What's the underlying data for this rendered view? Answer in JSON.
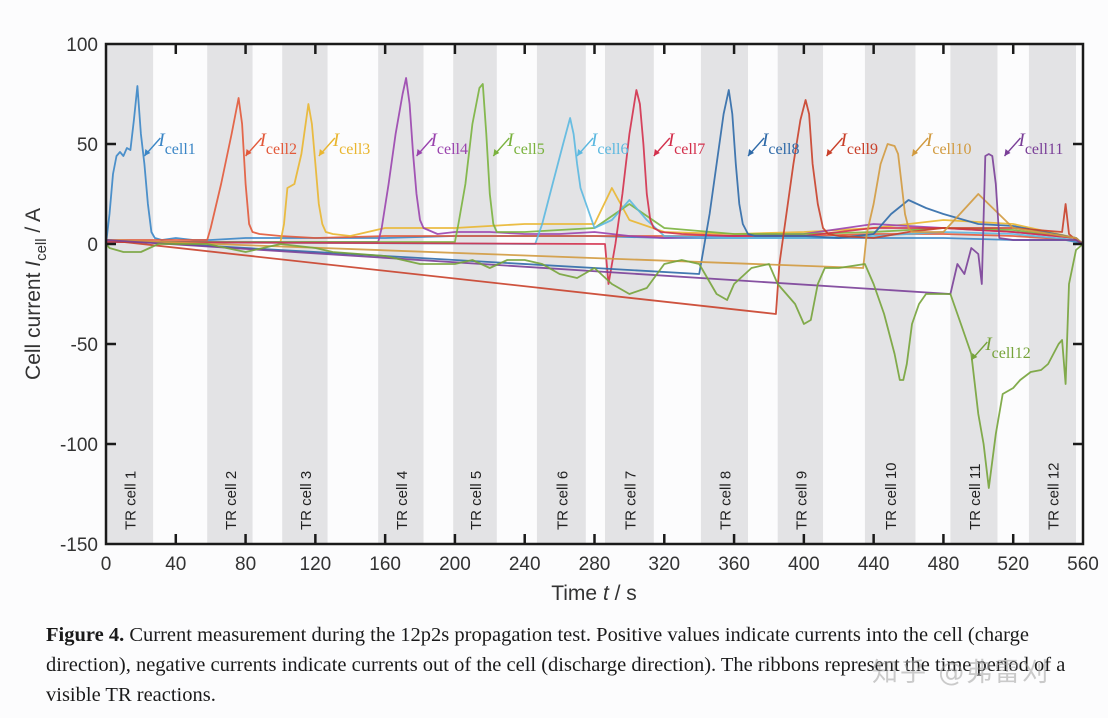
{
  "chart_data": {
    "type": "line",
    "title": "",
    "xlabel": "Time  t / s",
    "ylabel": "Cell current  I_cell / A",
    "xlim": [
      0,
      560
    ],
    "ylim": [
      -150,
      100
    ],
    "xticks": [
      0,
      40,
      80,
      120,
      160,
      200,
      240,
      280,
      320,
      360,
      400,
      440,
      480,
      520,
      560
    ],
    "yticks": [
      100,
      50,
      0,
      -50,
      -100,
      -150
    ],
    "grid": false,
    "ribbons": [
      {
        "label": "TR cell 1",
        "start": 0,
        "end": 27
      },
      {
        "label": "TR cell 2",
        "start": 58,
        "end": 84
      },
      {
        "label": "TR cell 3",
        "start": 101,
        "end": 127
      },
      {
        "label": "TR cell 4",
        "start": 156,
        "end": 182
      },
      {
        "label": "TR cell 5",
        "start": 199,
        "end": 224
      },
      {
        "label": "TR cell 6",
        "start": 247,
        "end": 275
      },
      {
        "label": "TR cell 7",
        "start": 286,
        "end": 314
      },
      {
        "label": "TR cell 8",
        "start": 341,
        "end": 368
      },
      {
        "label": "TR cell 9",
        "start": 385,
        "end": 411
      },
      {
        "label": "TR cell 10",
        "start": 435,
        "end": 464
      },
      {
        "label": "TR cell 11",
        "start": 484,
        "end": 511
      },
      {
        "label": "TR cell 12",
        "start": 529,
        "end": 556
      }
    ],
    "series": [
      {
        "name": "I cell1",
        "color": "#3b86c6",
        "label_at": [
          22,
          47
        ],
        "x": [
          0,
          2,
          4,
          6,
          8,
          10,
          12,
          14,
          16,
          18,
          20,
          22,
          24,
          26,
          28,
          32,
          40,
          50,
          60,
          80,
          120,
          160,
          200,
          240,
          280,
          320,
          360,
          400,
          440,
          480,
          520,
          550,
          556,
          560
        ],
        "y": [
          0,
          15,
          35,
          44,
          46,
          44,
          48,
          47,
          62,
          79,
          55,
          40,
          20,
          6,
          3,
          2,
          3,
          2,
          2,
          3,
          3,
          3,
          4,
          4,
          4,
          3,
          3,
          3,
          3,
          3,
          2,
          2,
          1,
          0
        ]
      },
      {
        "name": "I cell2",
        "color": "#e2593a",
        "label_at": [
          80,
          47
        ],
        "x": [
          0,
          58,
          60,
          66,
          72,
          76,
          78,
          80,
          82,
          84,
          88,
          100,
          120,
          160,
          200,
          240,
          280,
          320,
          360,
          400,
          440,
          480,
          520,
          556,
          560
        ],
        "y": [
          2,
          2,
          8,
          30,
          55,
          73,
          60,
          30,
          10,
          6,
          5,
          4,
          3,
          4,
          4,
          4,
          4,
          4,
          4,
          4,
          5,
          5,
          4,
          2,
          0
        ]
      },
      {
        "name": "I cell3",
        "color": "#e9b630",
        "label_at": [
          122,
          47
        ],
        "x": [
          0,
          100,
          102,
          104,
          108,
          112,
          116,
          118,
          120,
          122,
          124,
          126,
          130,
          140,
          160,
          200,
          240,
          280,
          290,
          300,
          320,
          360,
          400,
          440,
          480,
          520,
          556,
          560
        ],
        "y": [
          1,
          1,
          10,
          28,
          30,
          45,
          70,
          60,
          40,
          20,
          10,
          6,
          5,
          4,
          8,
          8,
          10,
          10,
          28,
          12,
          6,
          5,
          6,
          8,
          12,
          10,
          3,
          0
        ]
      },
      {
        "name": "I cell4",
        "color": "#9a44ae",
        "label_at": [
          178,
          47
        ],
        "x": [
          0,
          156,
          158,
          162,
          166,
          170,
          172,
          174,
          176,
          178,
          180,
          182,
          190,
          200,
          220,
          240,
          260,
          280,
          300,
          320,
          360,
          400,
          440,
          480,
          520,
          556,
          560
        ],
        "y": [
          1,
          1,
          8,
          30,
          55,
          75,
          83,
          70,
          45,
          25,
          12,
          8,
          5,
          6,
          6,
          5,
          5,
          6,
          4,
          3,
          4,
          5,
          10,
          8,
          6,
          3,
          0
        ]
      },
      {
        "name": "I cell5",
        "color": "#7ab23e",
        "label_at": [
          222,
          47
        ],
        "x": [
          0,
          200,
          202,
          206,
          210,
          214,
          216,
          218,
          220,
          222,
          224,
          228,
          240,
          260,
          280,
          300,
          320,
          360,
          400,
          440,
          480,
          520,
          556,
          560
        ],
        "y": [
          1,
          1,
          10,
          30,
          60,
          78,
          80,
          55,
          25,
          10,
          6,
          6,
          6,
          7,
          8,
          20,
          8,
          5,
          5,
          6,
          8,
          7,
          3,
          0
        ]
      },
      {
        "name": "I cell6",
        "color": "#5bb8e0",
        "label_at": [
          270,
          47
        ],
        "x": [
          0,
          246,
          250,
          256,
          262,
          266,
          268,
          270,
          272,
          276,
          280,
          290,
          300,
          310,
          320,
          360,
          400,
          440,
          480,
          520,
          556,
          560
        ],
        "y": [
          1,
          0,
          10,
          30,
          50,
          63,
          55,
          40,
          28,
          18,
          8,
          12,
          22,
          12,
          4,
          3,
          3,
          4,
          6,
          5,
          2,
          0
        ]
      },
      {
        "name": "I cell7",
        "color": "#d3304c",
        "label_at": [
          314,
          47
        ],
        "x": [
          0,
          286,
          288,
          292,
          296,
          300,
          304,
          306,
          308,
          310,
          312,
          314,
          318,
          330,
          360,
          400,
          440,
          480,
          520,
          556,
          560
        ],
        "y": [
          1,
          0,
          -20,
          0,
          25,
          55,
          77,
          70,
          50,
          25,
          12,
          8,
          6,
          5,
          4,
          4,
          8,
          8,
          6,
          3,
          0
        ]
      },
      {
        "name": "I cell8",
        "color": "#2f6aa8",
        "label_at": [
          368,
          47
        ],
        "x": [
          0,
          340,
          342,
          346,
          350,
          354,
          357,
          359,
          361,
          363,
          365,
          368,
          372,
          380,
          400,
          420,
          440,
          450,
          460,
          470,
          480,
          500,
          520,
          556,
          560
        ],
        "y": [
          2,
          -15,
          -5,
          15,
          40,
          65,
          77,
          65,
          40,
          20,
          10,
          5,
          4,
          4,
          4,
          3,
          5,
          15,
          22,
          18,
          15,
          10,
          9,
          3,
          0
        ]
      },
      {
        "name": "I cell9",
        "color": "#c9402a",
        "label_at": [
          413,
          47
        ],
        "x": [
          0,
          384,
          386,
          390,
          394,
          398,
          401,
          403,
          405,
          408,
          411,
          414,
          420,
          440,
          460,
          480,
          520,
          548,
          550,
          552,
          556,
          560
        ],
        "y": [
          2,
          -35,
          -10,
          15,
          40,
          62,
          72,
          65,
          40,
          20,
          8,
          5,
          4,
          3,
          6,
          8,
          8,
          6,
          20,
          5,
          2,
          0
        ]
      },
      {
        "name": "I cell10",
        "color": "#d19a3f",
        "label_at": [
          462,
          47
        ],
        "x": [
          0,
          434,
          436,
          440,
          444,
          448,
          452,
          454,
          456,
          458,
          460,
          462,
          466,
          480,
          500,
          520,
          556,
          560
        ],
        "y": [
          2,
          -12,
          5,
          20,
          40,
          50,
          49,
          45,
          30,
          15,
          8,
          6,
          6,
          6,
          25,
          8,
          3,
          0
        ]
      },
      {
        "name": "I cell11",
        "color": "#7a3f98",
        "label_at": [
          515,
          47
        ],
        "x": [
          0,
          484,
          488,
          492,
          496,
          500,
          502,
          504,
          506,
          508,
          510,
          512,
          520,
          556,
          560
        ],
        "y": [
          2,
          -25,
          -10,
          -15,
          -2,
          -5,
          -20,
          44,
          45,
          44,
          30,
          3,
          2,
          2,
          0
        ]
      },
      {
        "name": "I cell12",
        "color": "#76a33a",
        "label_at": [
          496,
          -55
        ],
        "x": [
          0,
          2,
          10,
          20,
          30,
          58,
          80,
          100,
          120,
          130,
          160,
          170,
          180,
          200,
          210,
          220,
          230,
          240,
          250,
          260,
          270,
          280,
          290,
          300,
          310,
          320,
          330,
          340,
          350,
          356,
          360,
          370,
          380,
          385,
          395,
          400,
          404,
          408,
          412,
          420,
          435,
          440,
          446,
          452,
          455,
          457,
          459,
          462,
          466,
          470,
          476,
          484,
          490,
          496,
          500,
          503,
          506,
          510,
          514,
          520,
          524,
          530,
          536,
          540,
          546,
          548,
          550,
          552,
          556,
          560
        ],
        "y": [
          0,
          -2,
          -4,
          -4,
          0,
          0,
          -4,
          0,
          -2,
          -4,
          -6,
          -8,
          -10,
          -10,
          -8,
          -12,
          -8,
          -8,
          -10,
          -15,
          -17,
          -12,
          -20,
          -25,
          -22,
          -10,
          -8,
          -10,
          -25,
          -28,
          -20,
          -12,
          -10,
          -20,
          -30,
          -40,
          -38,
          -20,
          -12,
          -12,
          -10,
          -20,
          -35,
          -55,
          -68,
          -68,
          -60,
          -40,
          -30,
          -25,
          -25,
          -25,
          -40,
          -55,
          -85,
          -100,
          -122,
          -95,
          -75,
          -72,
          -68,
          -64,
          -63,
          -60,
          -50,
          -48,
          -70,
          -20,
          -3,
          0
        ]
      }
    ]
  },
  "caption": {
    "label": "Figure 4.",
    "text": " Current measurement during the 12p2s propagation test. Positive values indicate currents into the cell (charge direction), negative currents indicate currents out of the cell (discharge direction). The ribbons represent the time period of a visible TR reactions."
  },
  "watermark": "知乎 @弗雷刈"
}
